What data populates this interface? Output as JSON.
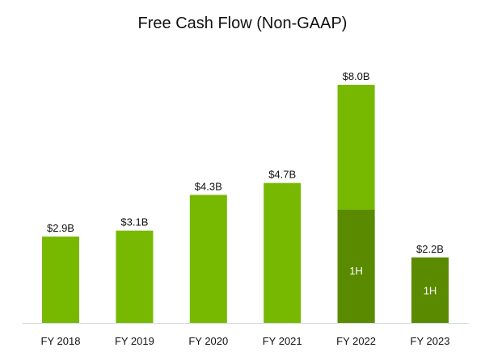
{
  "chart_data": {
    "type": "bar",
    "title": "Free Cash Flow (Non-GAAP)",
    "xlabel": "",
    "ylabel": "",
    "ylim": [
      0,
      8.0
    ],
    "grid": false,
    "legend": "none",
    "categories": [
      "FY 2018",
      "FY 2019",
      "FY 2020",
      "FY 2021",
      "FY 2022",
      "FY 2023"
    ],
    "values": [
      2.9,
      3.1,
      4.3,
      4.7,
      8.0,
      2.2
    ],
    "value_labels": [
      "$2.9B",
      "$3.1B",
      "$4.3B",
      "$4.7B",
      "$8.0B",
      "$2.2B"
    ],
    "first_half": {
      "label": "1H",
      "values": [
        null,
        null,
        null,
        null,
        3.8,
        2.2
      ]
    },
    "colors": {
      "full_year": "#76b900",
      "first_half": "#5a8a00",
      "axis": "#cfd8dc",
      "text": "#111111"
    }
  }
}
